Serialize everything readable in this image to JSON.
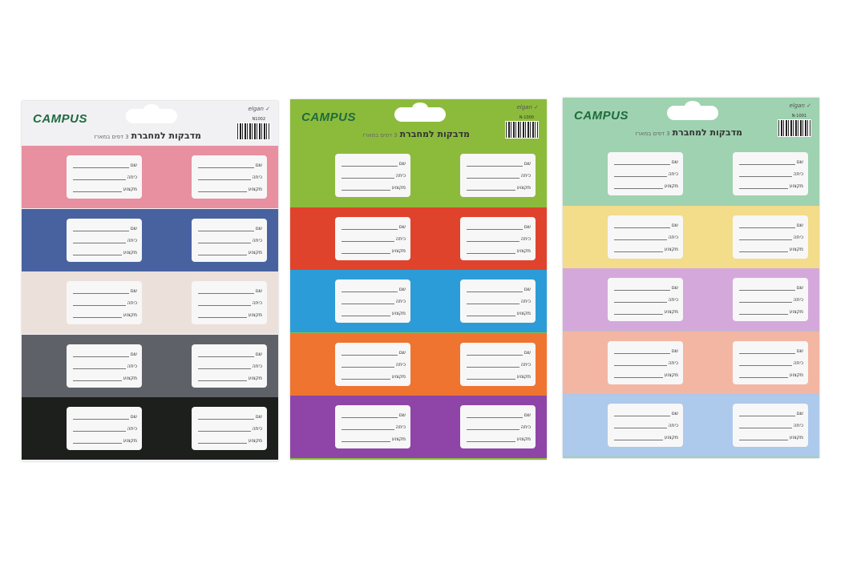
{
  "packs": [
    {
      "brand": "CAMPUS",
      "title": "מדבקות למחברת",
      "subtitle": "3 דפים במארז",
      "code": "N1002",
      "mark": "elgan ✓",
      "header_color": "#f1f0f3",
      "bands": [
        "#e88fa0",
        "#4862a0",
        "#ece0da",
        "#5f6168",
        "#1c1f1c"
      ]
    },
    {
      "brand": "CAMPUS",
      "title": "מדבקות למחברת",
      "subtitle": "3 דפים במארז",
      "code": "N-1000",
      "mark": "elgan ✓",
      "header_color": "#8cbb3c",
      "bands": [
        "#8cbb3c",
        "#e0432c",
        "#2c9cd8",
        "#ef7430",
        "#8e45a7"
      ]
    },
    {
      "brand": "CAMPUS",
      "title": "מדבקות למחברת",
      "subtitle": "3 דפים במארז",
      "code": "N-1001",
      "mark": "elgan ✓",
      "header_color": "#9fd2b0",
      "bands": [
        "#9fd2b0",
        "#f3dc8a",
        "#d5a8dc",
        "#f3b6a2",
        "#adc9ec"
      ]
    }
  ],
  "sticker_fields": [
    "שם",
    "כיתה",
    "מקצוע"
  ]
}
